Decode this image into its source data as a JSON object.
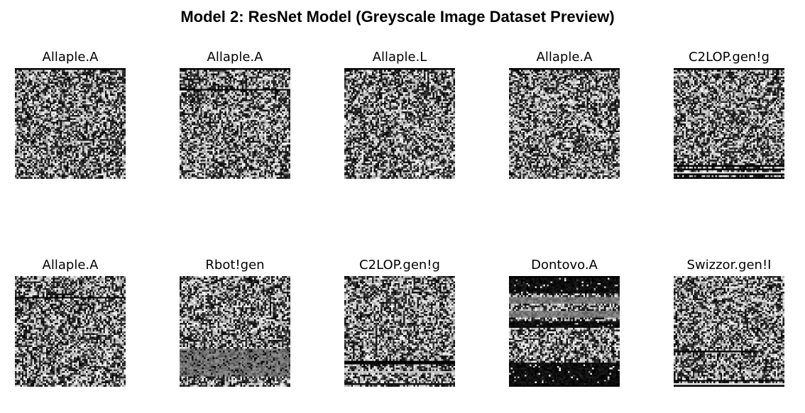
{
  "title": "Model 2: ResNet Model (Greyscale Image Dataset Preview)",
  "images": [
    {
      "label": "Allaple.A"
    },
    {
      "label": "Allaple.A"
    },
    {
      "label": "Allaple.L"
    },
    {
      "label": "Allaple.A"
    },
    {
      "label": "C2LOP.gen!g"
    },
    {
      "label": "Allaple.A"
    },
    {
      "label": "Rbot!gen"
    },
    {
      "label": "C2LOP.gen!g"
    },
    {
      "label": "Dontovo.A"
    },
    {
      "label": "Swizzor.gen!I"
    }
  ]
}
